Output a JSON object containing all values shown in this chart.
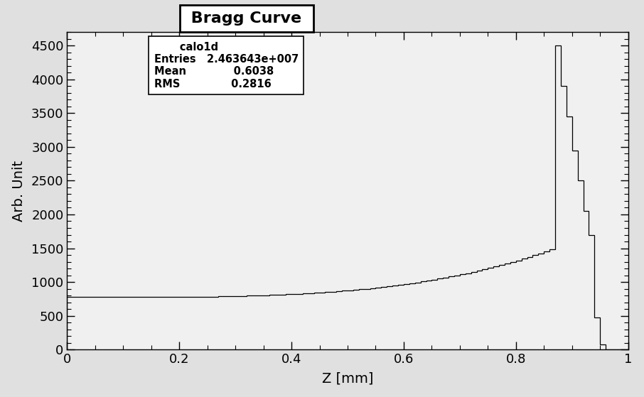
{
  "title": "Bragg Curve",
  "xlabel": "Z [mm]",
  "ylabel": "Arb. Unit",
  "xlim": [
    0,
    1.0
  ],
  "ylim": [
    0,
    4700
  ],
  "yticks": [
    0,
    500,
    1000,
    1500,
    2000,
    2500,
    3000,
    3500,
    4000,
    4500
  ],
  "xticks": [
    0,
    0.2,
    0.4,
    0.6,
    0.8,
    1.0
  ],
  "stats_title": "calo1d",
  "stats_entries": "2.463643e+007",
  "stats_mean": "0.6038",
  "stats_rms": "0.2816",
  "background_color": "#e0e0e0",
  "plot_background": "#f0f0f0",
  "line_color": "#000000",
  "n_bins": 100,
  "initial_value": 775,
  "figsize": [
    9.06,
    5.59
  ],
  "dpi": 100
}
